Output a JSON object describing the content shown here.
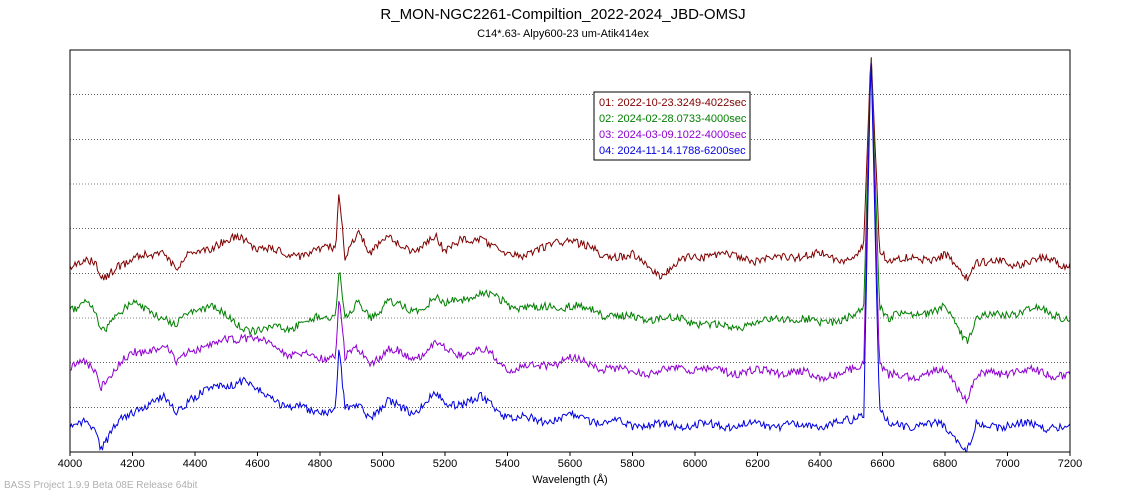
{
  "chart_data": {
    "type": "line",
    "title": "R_MON-NGC2261-Compiltion_2022-2024_JBD-OMSJ",
    "subtitle": "C14*.63- Alpy600-23 um-Atik414ex",
    "xlabel": "Wavelength (Å)",
    "ylabel": "",
    "xlim": [
      4000,
      7200
    ],
    "x_ticks": [
      4000,
      4200,
      4400,
      4600,
      4800,
      5000,
      5200,
      5400,
      5600,
      5800,
      6000,
      6200,
      6400,
      6600,
      6800,
      7000,
      7200
    ],
    "ylim": [
      0,
      9
    ],
    "grid": true,
    "legend_position": "top-center",
    "series": [
      {
        "name": "01: 2022-10-23.3249-4022sec",
        "color": "#800000",
        "baseline": 4.2,
        "x": [
          4000,
          4050,
          4080,
          4100,
          4150,
          4200,
          4250,
          4300,
          4340,
          4380,
          4450,
          4500,
          4550,
          4600,
          4700,
          4800,
          4850,
          4861,
          4880,
          4921,
          4960,
          5018,
          5100,
          5169,
          5200,
          5250,
          5317,
          5400,
          5500,
          5600,
          5700,
          5800,
          5890,
          6000,
          6100,
          6200,
          6300,
          6400,
          6500,
          6540,
          6563,
          6590,
          6620,
          6700,
          6800,
          6870,
          6900,
          7000,
          7100,
          7200
        ],
        "y": [
          4.2,
          4.3,
          4.2,
          3.8,
          4.2,
          4.3,
          4.4,
          4.5,
          4.1,
          4.4,
          4.6,
          4.7,
          4.8,
          4.6,
          4.4,
          4.5,
          4.6,
          5.9,
          4.4,
          4.9,
          4.4,
          4.9,
          4.4,
          4.9,
          4.5,
          4.7,
          4.8,
          4.4,
          4.5,
          4.8,
          4.4,
          4.4,
          4.0,
          4.4,
          4.4,
          4.3,
          4.4,
          4.4,
          4.3,
          4.6,
          9.0,
          4.6,
          4.3,
          4.3,
          4.4,
          3.9,
          4.3,
          4.2,
          4.3,
          4.2
        ]
      },
      {
        "name": "02: 2024-02-28.0733-4000sec",
        "color": "#008000",
        "baseline": 3.2,
        "x": [
          4000,
          4050,
          4080,
          4100,
          4150,
          4200,
          4250,
          4300,
          4340,
          4380,
          4450,
          4500,
          4550,
          4600,
          4700,
          4800,
          4850,
          4861,
          4880,
          4921,
          4960,
          5018,
          5100,
          5169,
          5200,
          5250,
          5317,
          5400,
          5500,
          5600,
          5700,
          5800,
          5890,
          6000,
          6100,
          6200,
          6300,
          6400,
          6500,
          6540,
          6563,
          6590,
          6620,
          6700,
          6800,
          6870,
          6900,
          7000,
          7100,
          7200
        ],
        "y": [
          3.2,
          3.3,
          3.1,
          2.7,
          3.1,
          3.3,
          3.2,
          3.0,
          2.8,
          3.1,
          3.3,
          3.0,
          2.8,
          2.7,
          2.8,
          3.0,
          3.1,
          4.2,
          3.0,
          3.3,
          3.0,
          3.4,
          3.1,
          3.5,
          3.3,
          3.4,
          3.6,
          3.3,
          3.2,
          3.3,
          3.1,
          3.0,
          3.0,
          2.9,
          2.8,
          2.9,
          3.0,
          2.9,
          3.0,
          3.2,
          9.0,
          3.3,
          3.0,
          3.1,
          3.2,
          2.5,
          3.0,
          3.1,
          3.2,
          3.0
        ]
      },
      {
        "name": "03: 2024-03-09.1022-4000sec",
        "color": "#9000d0",
        "baseline": 2.0,
        "x": [
          4000,
          4050,
          4080,
          4100,
          4150,
          4200,
          4250,
          4300,
          4340,
          4380,
          4450,
          4500,
          4550,
          4600,
          4700,
          4800,
          4850,
          4861,
          4880,
          4921,
          4960,
          5018,
          5100,
          5169,
          5200,
          5250,
          5317,
          5400,
          5500,
          5600,
          5700,
          5800,
          5890,
          6000,
          6100,
          6200,
          6300,
          6400,
          6500,
          6540,
          6563,
          6590,
          6620,
          6700,
          6800,
          6870,
          6900,
          7000,
          7100,
          7200
        ],
        "y": [
          1.9,
          2.0,
          1.8,
          1.5,
          1.9,
          2.2,
          2.3,
          2.4,
          2.0,
          2.3,
          2.4,
          2.5,
          2.6,
          2.5,
          2.2,
          2.1,
          2.2,
          3.5,
          2.1,
          2.3,
          2.0,
          2.3,
          2.1,
          2.4,
          2.3,
          2.2,
          2.3,
          1.9,
          1.9,
          2.1,
          1.9,
          1.8,
          1.8,
          1.9,
          1.8,
          1.8,
          1.8,
          1.7,
          1.8,
          2.0,
          9.0,
          2.0,
          1.7,
          1.7,
          1.8,
          1.2,
          1.7,
          1.8,
          1.8,
          1.7
        ]
      },
      {
        "name": "04: 2024-11-14.1788-6200sec",
        "color": "#0000e0",
        "baseline": 0.8,
        "x": [
          4000,
          4050,
          4080,
          4100,
          4150,
          4200,
          4250,
          4300,
          4340,
          4380,
          4450,
          4500,
          4550,
          4600,
          4700,
          4800,
          4850,
          4861,
          4880,
          4921,
          4960,
          5018,
          5100,
          5169,
          5200,
          5250,
          5317,
          5400,
          5500,
          5600,
          5700,
          5800,
          5890,
          6000,
          6100,
          6200,
          6300,
          6400,
          6500,
          6540,
          6563,
          6590,
          6620,
          6700,
          6800,
          6870,
          6900,
          7000,
          7100,
          7200
        ],
        "y": [
          0.5,
          0.7,
          0.5,
          0.1,
          0.6,
          0.9,
          1.1,
          1.2,
          0.9,
          1.2,
          1.4,
          1.5,
          1.6,
          1.4,
          1.0,
          0.9,
          1.0,
          2.3,
          0.9,
          1.1,
          0.8,
          1.1,
          0.9,
          1.3,
          1.1,
          1.1,
          1.2,
          0.8,
          0.7,
          0.8,
          0.7,
          0.6,
          0.6,
          0.6,
          0.6,
          0.6,
          0.6,
          0.6,
          0.7,
          0.9,
          9.0,
          0.9,
          0.6,
          0.6,
          0.6,
          0.0,
          0.6,
          0.6,
          0.6,
          0.5
        ]
      }
    ]
  },
  "footer": "BASS Project 1.9.9 Beta 08E Release 64bit"
}
